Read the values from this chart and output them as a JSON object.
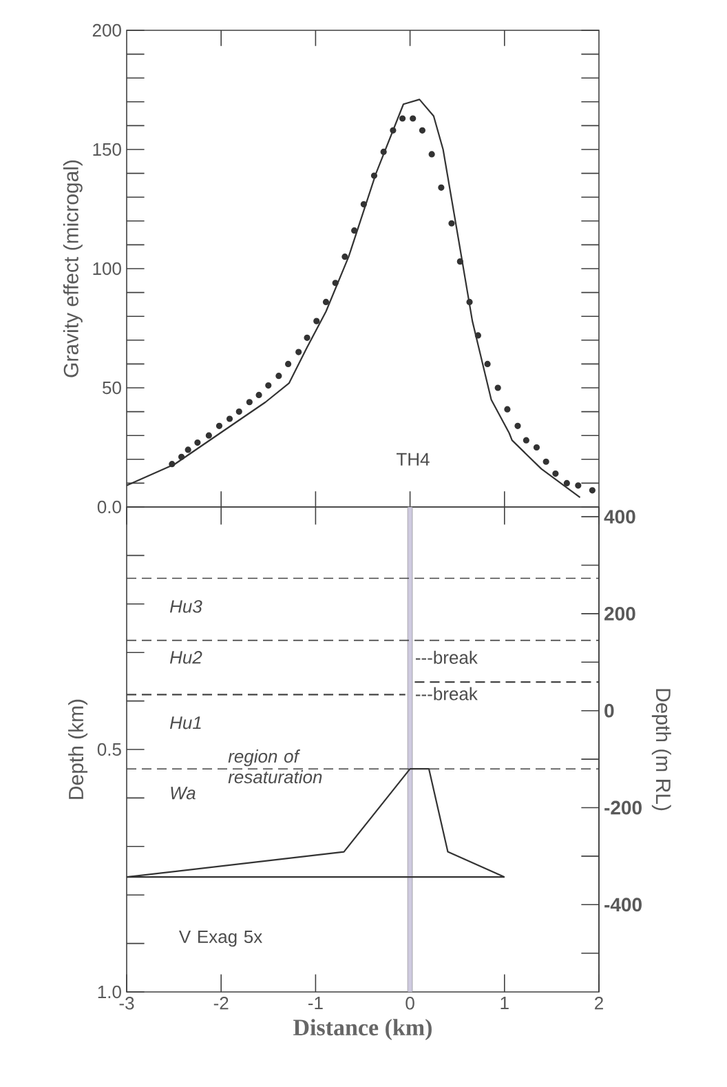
{
  "chart_data": [
    {
      "type": "line",
      "marker": "circle",
      "ylabel": "Gravity effect (microgal)",
      "xlim": [
        -3,
        2
      ],
      "ylim": [
        0,
        200
      ],
      "tick_labels": "y",
      "xticks": [
        {
          "value": -2,
          "label": null
        },
        {
          "value": -1,
          "label": null
        },
        {
          "value": 0,
          "label": null
        },
        {
          "value": 1,
          "label": null
        }
      ],
      "yticks": [
        {
          "value": 0,
          "label": null
        },
        {
          "value": 10,
          "label": null
        },
        {
          "value": 20,
          "label": null
        },
        {
          "value": 30,
          "label": null
        },
        {
          "value": 40,
          "label": null
        },
        50,
        {
          "value": 60,
          "label": null
        },
        {
          "value": 70,
          "label": null
        },
        {
          "value": 80,
          "label": null
        },
        {
          "value": 90,
          "label": null
        },
        100,
        {
          "value": 110,
          "label": null
        },
        {
          "value": 120,
          "label": null
        },
        {
          "value": 130,
          "label": null
        },
        {
          "value": 140,
          "label": null
        },
        150,
        {
          "value": 160,
          "label": null
        },
        {
          "value": 170,
          "label": null
        },
        {
          "value": 180,
          "label": null
        },
        {
          "value": 190,
          "label": null
        },
        200
      ],
      "annotations": [
        "TH4"
      ],
      "series": [
        {
          "line_style": "solid",
          "marker": "none",
          "color": "#333333",
          "x": [
            -3,
            -2.49,
            -1.53,
            -1.28,
            -1.09,
            -0.89,
            -0.65,
            -0.36,
            -0.07,
            0.1,
            0.25,
            0.35,
            0.51,
            0.66,
            0.86,
            1.05,
            1.08,
            1.39,
            1.8
          ],
          "values": [
            9,
            18,
            44,
            52,
            67,
            82,
            105,
            140,
            169,
            171,
            164,
            150,
            113,
            78,
            45,
            31,
            28,
            16,
            4
          ]
        },
        {
          "type": "scatter",
          "color": "#333333",
          "x": [
            -2.52,
            -2.42,
            -2.35,
            -2.25,
            -2.13,
            -2.02,
            -1.91,
            -1.81,
            -1.7,
            -1.6,
            -1.5,
            -1.39,
            -1.29,
            -1.18,
            -1.09,
            -0.99,
            -0.89,
            -0.79,
            -0.69,
            -0.59,
            -0.49,
            -0.38,
            -0.28,
            -0.18,
            -0.08,
            0.03,
            0.13,
            0.23,
            0.33,
            0.44,
            0.53,
            0.63,
            0.72,
            0.82,
            0.93,
            1.03,
            1.14,
            1.23,
            1.34,
            1.44,
            1.54,
            1.66,
            1.78,
            1.93
          ],
          "values": [
            18,
            21,
            24,
            27,
            30,
            34,
            37,
            40,
            44,
            47,
            51,
            55,
            60,
            65,
            71,
            78,
            86,
            94,
            105,
            116,
            127,
            139,
            149,
            158,
            163,
            163,
            158,
            148,
            134,
            119,
            103,
            86,
            72,
            60,
            50,
            41,
            34,
            28,
            25,
            19,
            14,
            10,
            9,
            7
          ]
        }
      ]
    },
    {
      "type": "line",
      "xlabel": "Distance (km)",
      "ylabel": "Depth (km)",
      "y2label": "Depth (m RL)",
      "xlim": [
        -3,
        2
      ],
      "ylim": [
        1.0,
        0.0
      ],
      "y2lim": [
        -580,
        420
      ],
      "xticks": [
        -3,
        -2,
        -1,
        0,
        1,
        2
      ],
      "yticks": [
        {
          "value": 0,
          "label": "0.0"
        },
        {
          "value": 0.1,
          "label": null
        },
        {
          "value": 0.2,
          "label": null
        },
        {
          "value": 0.3,
          "label": null
        },
        {
          "value": 0.4,
          "label": null
        },
        {
          "value": 0.5,
          "label": "0.5"
        },
        {
          "value": 0.6,
          "label": null
        },
        {
          "value": 0.7,
          "label": null
        },
        {
          "value": 0.8,
          "label": null
        },
        {
          "value": 0.9,
          "label": null
        },
        {
          "value": 1.0,
          "label": "1.0"
        }
      ],
      "y2ticks": [
        400,
        {
          "value": 300,
          "label": null
        },
        200,
        {
          "value": 100,
          "label": null
        },
        0,
        {
          "value": -100,
          "label": null
        },
        -200,
        {
          "value": -300,
          "label": null
        },
        -400,
        {
          "value": -500,
          "label": null
        }
      ],
      "ref_lines": [
        {
          "axis": "y",
          "value": 0.147,
          "line_style": "dashed",
          "color": "#444444"
        },
        {
          "axis": "y",
          "value": 0.275,
          "line_style": "dashed",
          "color": "#444444"
        },
        {
          "axis": "y",
          "value": 0.54,
          "line_style": "dashed",
          "color": "#444444"
        }
      ],
      "bands": [
        {
          "axis": "x",
          "from": -0.025,
          "to": 0.025,
          "color": "#cfcbe0"
        }
      ],
      "annotations": [
        "*Hu3*",
        "*Hu2*",
        "*Hu1*",
        "*Wa*",
        "*region of resaturation*",
        "---break",
        "---break",
        "V Exag 5x"
      ],
      "series": [
        {
          "line_style": "dashed",
          "color": "#444444",
          "x": [
            -3,
            -0.05
          ],
          "values": [
            0.387,
            0.387
          ]
        },
        {
          "line_style": "dashed",
          "color": "#444444",
          "x": [
            0.05,
            2
          ],
          "values": [
            0.361,
            0.361
          ]
        },
        {
          "line_style": "solid",
          "color": "#333333",
          "x": [
            -3,
            -0.7,
            0,
            0.2,
            0.4,
            1
          ],
          "values": [
            0.763,
            0.711,
            0.54,
            0.54,
            0.711,
            0.763
          ]
        },
        {
          "line_style": "solid",
          "color": "#333333",
          "x": [
            -3,
            1
          ],
          "values": [
            0.763,
            0.763
          ]
        }
      ]
    }
  ]
}
